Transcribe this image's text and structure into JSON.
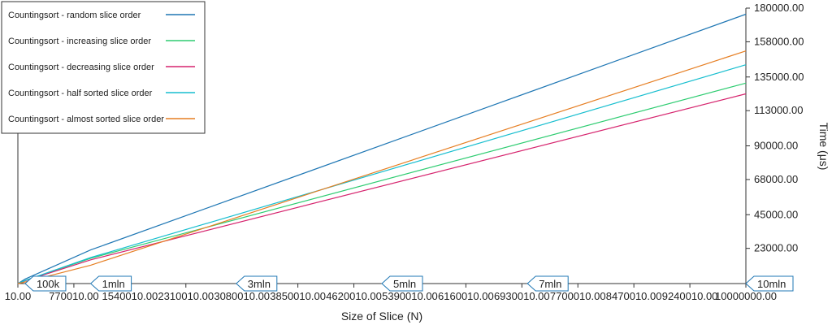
{
  "chart_data": {
    "type": "line",
    "xlabel": "Size of Slice (N)",
    "ylabel": "Time (μs)",
    "xlim": [
      10,
      10000000
    ],
    "ylim": [
      0,
      180000
    ],
    "x_tick_labels": [
      "10.00",
      "770010.00",
      "1540010.00",
      "2310010.00",
      "3080010.00",
      "3850010.00",
      "4620010.00",
      "5390010.00",
      "6160010.00",
      "6930010.00",
      "7700010.00",
      "8470010.00",
      "9240010.00",
      "10000000.00"
    ],
    "y_tick_labels": [
      "23000.00",
      "45000.00",
      "68000.00",
      "90000.00",
      "113000.00",
      "135000.00",
      "158000.00",
      "180000.00"
    ],
    "y_ticks": [
      23000,
      45000,
      68000,
      90000,
      113000,
      135000,
      158000,
      180000
    ],
    "legend_position": "top-left",
    "markers": [
      {
        "label": "100k",
        "x": 100000
      },
      {
        "label": "1mln",
        "x": 1000000
      },
      {
        "label": "3mln",
        "x": 3000000
      },
      {
        "label": "5mln",
        "x": 5000000
      },
      {
        "label": "7mln",
        "x": 7000000
      },
      {
        "label": "10mln",
        "x": 10000000
      }
    ],
    "series": [
      {
        "name": "Countingsort - random slice order",
        "color": "#1f77b4",
        "x": [
          10,
          100000,
          1000000,
          10000000
        ],
        "y": [
          0,
          3000,
          22000,
          176000
        ]
      },
      {
        "name": "Countingsort - increasing slice order",
        "color": "#2ecc71",
        "x": [
          10,
          100000,
          1000000,
          10000000
        ],
        "y": [
          0,
          2000,
          16500,
          131000
        ]
      },
      {
        "name": "Countingsort - decreasing slice order",
        "color": "#d6246e",
        "x": [
          10,
          100000,
          1000000,
          10000000
        ],
        "y": [
          0,
          1800,
          15500,
          124000
        ]
      },
      {
        "name": "Countingsort - half sorted slice order",
        "color": "#17becf",
        "x": [
          10,
          100000,
          1000000,
          10000000
        ],
        "y": [
          0,
          2000,
          17000,
          143000
        ]
      },
      {
        "name": "Countingsort - almost sorted slice order",
        "color": "#e67e22",
        "x": [
          10,
          100000,
          1000000,
          10000000
        ],
        "y": [
          0,
          1000,
          12000,
          152000
        ]
      }
    ]
  }
}
